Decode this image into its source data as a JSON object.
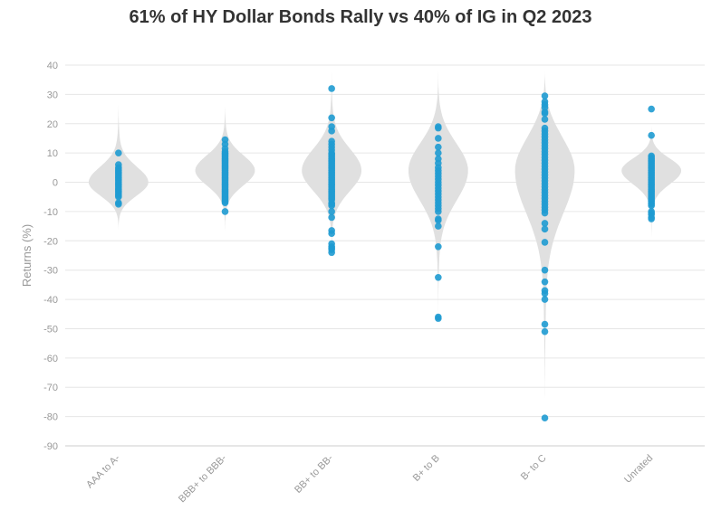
{
  "chart_data": {
    "type": "violin_strip",
    "title": "61% of HY Dollar Bonds Rally vs 40% of IG in Q2 2023",
    "xlabel": "",
    "ylabel": "Returns (%)",
    "ylim": [
      -90,
      40
    ],
    "yticks": [
      40,
      30,
      20,
      10,
      0,
      -10,
      -20,
      -30,
      -40,
      -50,
      -60,
      -70,
      -80,
      -90
    ],
    "grid": true,
    "colors": {
      "points": "#1f9bd1",
      "violin": "#e0e0e0",
      "grid": "#e6e6e6"
    },
    "categories": [
      "AAA to A-",
      "BBB+ to BBB-",
      "BB+ to BB-",
      "B+ to B",
      "B- to C",
      "Unrated"
    ],
    "series": [
      {
        "name": "AAA to A-",
        "range": [
          -17,
          28
        ],
        "mode": 0,
        "points": [
          10,
          6,
          5,
          4.5,
          4,
          3.5,
          3,
          2.5,
          2,
          1.5,
          1,
          0.5,
          0,
          -0.5,
          -1,
          -1.5,
          -2,
          -2.5,
          -3,
          -3.5,
          -4,
          -4.5,
          -5,
          -7,
          -7.5
        ]
      },
      {
        "name": "BBB+ to BBB-",
        "range": [
          -18,
          28
        ],
        "mode": 4,
        "points": [
          14.5,
          13,
          11.5,
          10.5,
          10,
          9.5,
          9,
          8.5,
          8,
          7.5,
          7,
          6.5,
          6,
          5.5,
          5,
          4.5,
          4,
          3.5,
          3,
          2.5,
          2,
          1.5,
          1,
          0.5,
          0,
          -0.5,
          -1,
          -1.5,
          -2,
          -2.5,
          -3,
          -3.5,
          -4,
          -4.5,
          -5,
          -5.5,
          -6,
          -6.5,
          -7,
          -10
        ]
      },
      {
        "name": "BB+ to BB-",
        "range": [
          -25,
          40
        ],
        "mode": 4,
        "points": [
          32,
          22,
          19,
          17.5,
          14,
          13,
          12,
          11,
          10,
          9.5,
          9,
          8.5,
          8,
          7.5,
          7,
          6.5,
          6,
          5.5,
          5,
          4.5,
          4,
          3.5,
          3,
          2.5,
          2,
          1.5,
          1,
          0.5,
          0,
          -0.5,
          -1,
          -1.5,
          -2,
          -2.5,
          -3,
          -3.5,
          -4,
          -4.5,
          -5,
          -5.5,
          -6,
          -7,
          -7.5,
          -8,
          -10,
          -12,
          -16.5,
          -17.5,
          -21,
          -22,
          -22.5,
          -23,
          -24
        ]
      },
      {
        "name": "B+ to B",
        "range": [
          -48,
          40
        ],
        "mode": 4,
        "points": [
          19,
          18.5,
          15,
          12,
          10,
          8,
          6.5,
          5,
          4,
          3,
          2,
          1,
          0,
          -1,
          -2,
          -3,
          -4,
          -5,
          -6,
          -7,
          -8,
          -9,
          -10,
          -12.5,
          -13,
          -15,
          -22,
          -32.5,
          -46,
          -46.5
        ]
      },
      {
        "name": "B- to C",
        "range": [
          -82,
          40
        ],
        "mode": 4,
        "points": [
          29.5,
          27.5,
          26.5,
          25.5,
          24,
          23.5,
          21.5,
          18.5,
          17.5,
          16.5,
          15.5,
          14.5,
          13.5,
          12.5,
          11.5,
          10.5,
          9.5,
          8.5,
          7.5,
          6.5,
          5.5,
          4.5,
          3.5,
          2.5,
          1.5,
          0.5,
          -0.5,
          -1.5,
          -2.5,
          -3.5,
          -4.5,
          -5.5,
          -6.5,
          -7.5,
          -8.5,
          -9.5,
          -10.5,
          -14,
          -16,
          -20.5,
          -30,
          -34,
          -37,
          -38,
          -40,
          -48.5,
          -51
        ]
      },
      {
        "name": "Unrated",
        "range": [
          -20,
          20
        ],
        "mode": 4,
        "points": [
          25,
          16,
          9,
          8.5,
          8,
          7.5,
          7,
          6.5,
          6,
          5.5,
          5,
          4.5,
          4,
          3.5,
          3,
          2.5,
          2,
          1.5,
          1,
          0.5,
          0,
          -0.5,
          -1,
          -1.5,
          -2,
          -2.5,
          -3,
          -3.5,
          -4,
          -4.5,
          -5,
          -5.5,
          -6,
          -6.5,
          -7,
          -7.5,
          -8,
          -10,
          -10.5,
          -11,
          -12,
          -12.5
        ]
      }
    ],
    "outlier_points": [
      {
        "series": "B- to C",
        "value": -80.5
      }
    ]
  }
}
